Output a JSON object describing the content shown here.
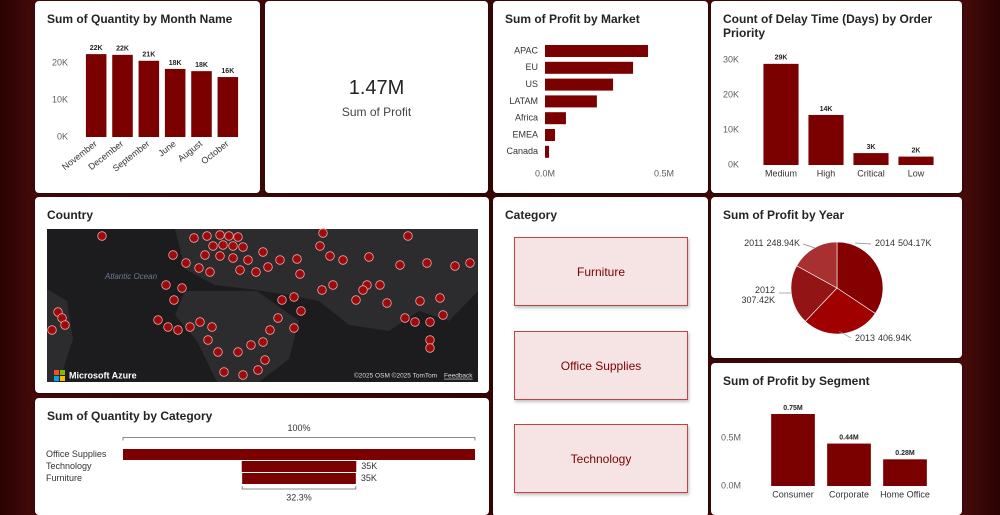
{
  "chart_data": [
    {
      "type": "bar",
      "title": "Sum of Quantity by Month Name",
      "categories": [
        "November",
        "December",
        "September",
        "June",
        "August",
        "October"
      ],
      "values": [
        22400,
        22200,
        20600,
        18400,
        17800,
        16200
      ],
      "value_labels": [
        "22K",
        "22K",
        "21K",
        "18K",
        "18K",
        "16K"
      ],
      "color": "#7b0000",
      "ylim": [
        0,
        25000
      ],
      "yticks": [
        {
          "value": 0,
          "label": "0K"
        },
        {
          "value": 10000,
          "label": "10K"
        },
        {
          "value": 20000,
          "label": "20K"
        }
      ]
    },
    {
      "type": "hbar",
      "title": "Sum of Profit by Market",
      "categories": [
        "APAC",
        "EU",
        "US",
        "LATAM",
        "Africa",
        "EMEA",
        "Canada"
      ],
      "values": [
        433000,
        370000,
        286000,
        218000,
        88000,
        42000,
        17000
      ],
      "color": "#7b0000",
      "xlim": [
        0,
        550000
      ],
      "xticks": [
        {
          "value": 0,
          "label": "0.0M"
        },
        {
          "value": 500000,
          "label": "0.5M"
        }
      ]
    },
    {
      "type": "bar",
      "title": "Count of Delay Time (Days) by Order Priority",
      "categories": [
        "Medium",
        "High",
        "Critical",
        "Low"
      ],
      "values": [
        28900,
        14300,
        3400,
        2400
      ],
      "value_labels": [
        "29K",
        "14K",
        "3K",
        "2K"
      ],
      "color": "#7b0000",
      "ylim": [
        0,
        30000
      ],
      "yticks": [
        {
          "value": 0,
          "label": "0K"
        },
        {
          "value": 10000,
          "label": "10K"
        },
        {
          "value": 20000,
          "label": "20K"
        },
        {
          "value": 30000,
          "label": "30K"
        }
      ]
    },
    {
      "type": "pie",
      "title": "Sum of Profit by Year",
      "categories": [
        "2014",
        "2013",
        "2012",
        "2011"
      ],
      "values": [
        504170,
        406940,
        307420,
        248940
      ],
      "value_labels": [
        "504.17K",
        "406.94K",
        "307.42K",
        "248.94K"
      ],
      "colors": [
        "#850000",
        "#a00000",
        "#921414",
        "#a83030"
      ]
    },
    {
      "type": "bar",
      "title": "Sum of Profit by Segment",
      "categories": [
        "Consumer",
        "Corporate",
        "Home Office"
      ],
      "values": [
        750000,
        442000,
        278000
      ],
      "value_labels": [
        "0.75M",
        "0.44M",
        "0.28M"
      ],
      "color": "#7b0000",
      "ylim": [
        0,
        800000
      ],
      "yticks": [
        {
          "value": 0,
          "label": "0.0M"
        },
        {
          "value": 500000,
          "label": "0.5M"
        }
      ]
    },
    {
      "type": "funnel",
      "title": "Sum of Quantity by Category",
      "categories": [
        "Office Supplies",
        "Technology",
        "Furniture"
      ],
      "values": [
        108200,
        35200,
        34950
      ],
      "value_labels": [
        null,
        "35K",
        "35K"
      ],
      "top_label": "100%",
      "bottom_label": "32.3%",
      "color": "#7b0000"
    }
  ],
  "card": {
    "value": "1.47M",
    "label": "Sum of Profit"
  },
  "slicer": {
    "title": "Category",
    "items": [
      "Furniture",
      "Office Supplies",
      "Technology"
    ]
  },
  "map": {
    "title": "Country",
    "ocean": "Atlantic Ocean",
    "logo": "Microsoft Azure",
    "copyright": "©2025 OSM ©2025 TomTom",
    "feedback": "Feedback"
  }
}
